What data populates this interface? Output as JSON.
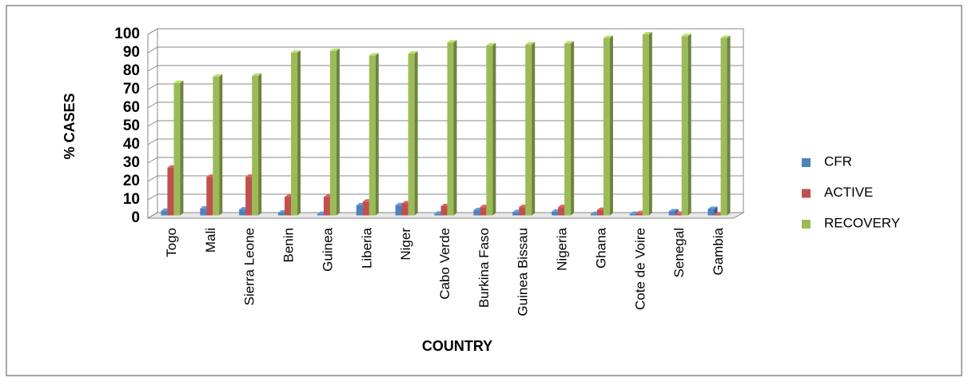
{
  "chart_data": {
    "type": "bar3d",
    "y_label": "% CASES",
    "x_label": "COUNTRY",
    "categories": [
      "Togo",
      "Mali",
      "Sierra Leone",
      "Benin",
      "Guinea",
      "Liberia",
      "Niger",
      "Cabo Verde",
      "Burkina Faso",
      "Guinea Bissau",
      "Nigeria",
      "Ghana",
      "Cote de Voire",
      "Senegal",
      "Gambia"
    ],
    "series": [
      {
        "name": "CFR",
        "color": "#4f81bd",
        "values": [
          2.5,
          3.8,
          3.2,
          1.5,
          0.8,
          5.5,
          5.5,
          1,
          2.8,
          1.8,
          2,
          0.8,
          0.8,
          2.2,
          3.5
        ]
      },
      {
        "name": "ACTIVE",
        "color": "#c0504d",
        "values": [
          26,
          21,
          21,
          10,
          10,
          7.5,
          6.5,
          5,
          4.5,
          4.5,
          4.5,
          3,
          1.2,
          0.8,
          0.5
        ]
      },
      {
        "name": "RECOVERY",
        "color": "#9bbb59",
        "values": [
          72,
          75.5,
          76,
          88.5,
          89.5,
          87,
          88,
          94,
          92.5,
          93,
          93.5,
          96.5,
          98.5,
          97.5,
          96.5
        ]
      }
    ],
    "ylim": [
      0,
      100
    ],
    "yticks": [
      0,
      10,
      20,
      30,
      40,
      50,
      60,
      70,
      80,
      90,
      100
    ],
    "grid": true,
    "legend": "right"
  }
}
